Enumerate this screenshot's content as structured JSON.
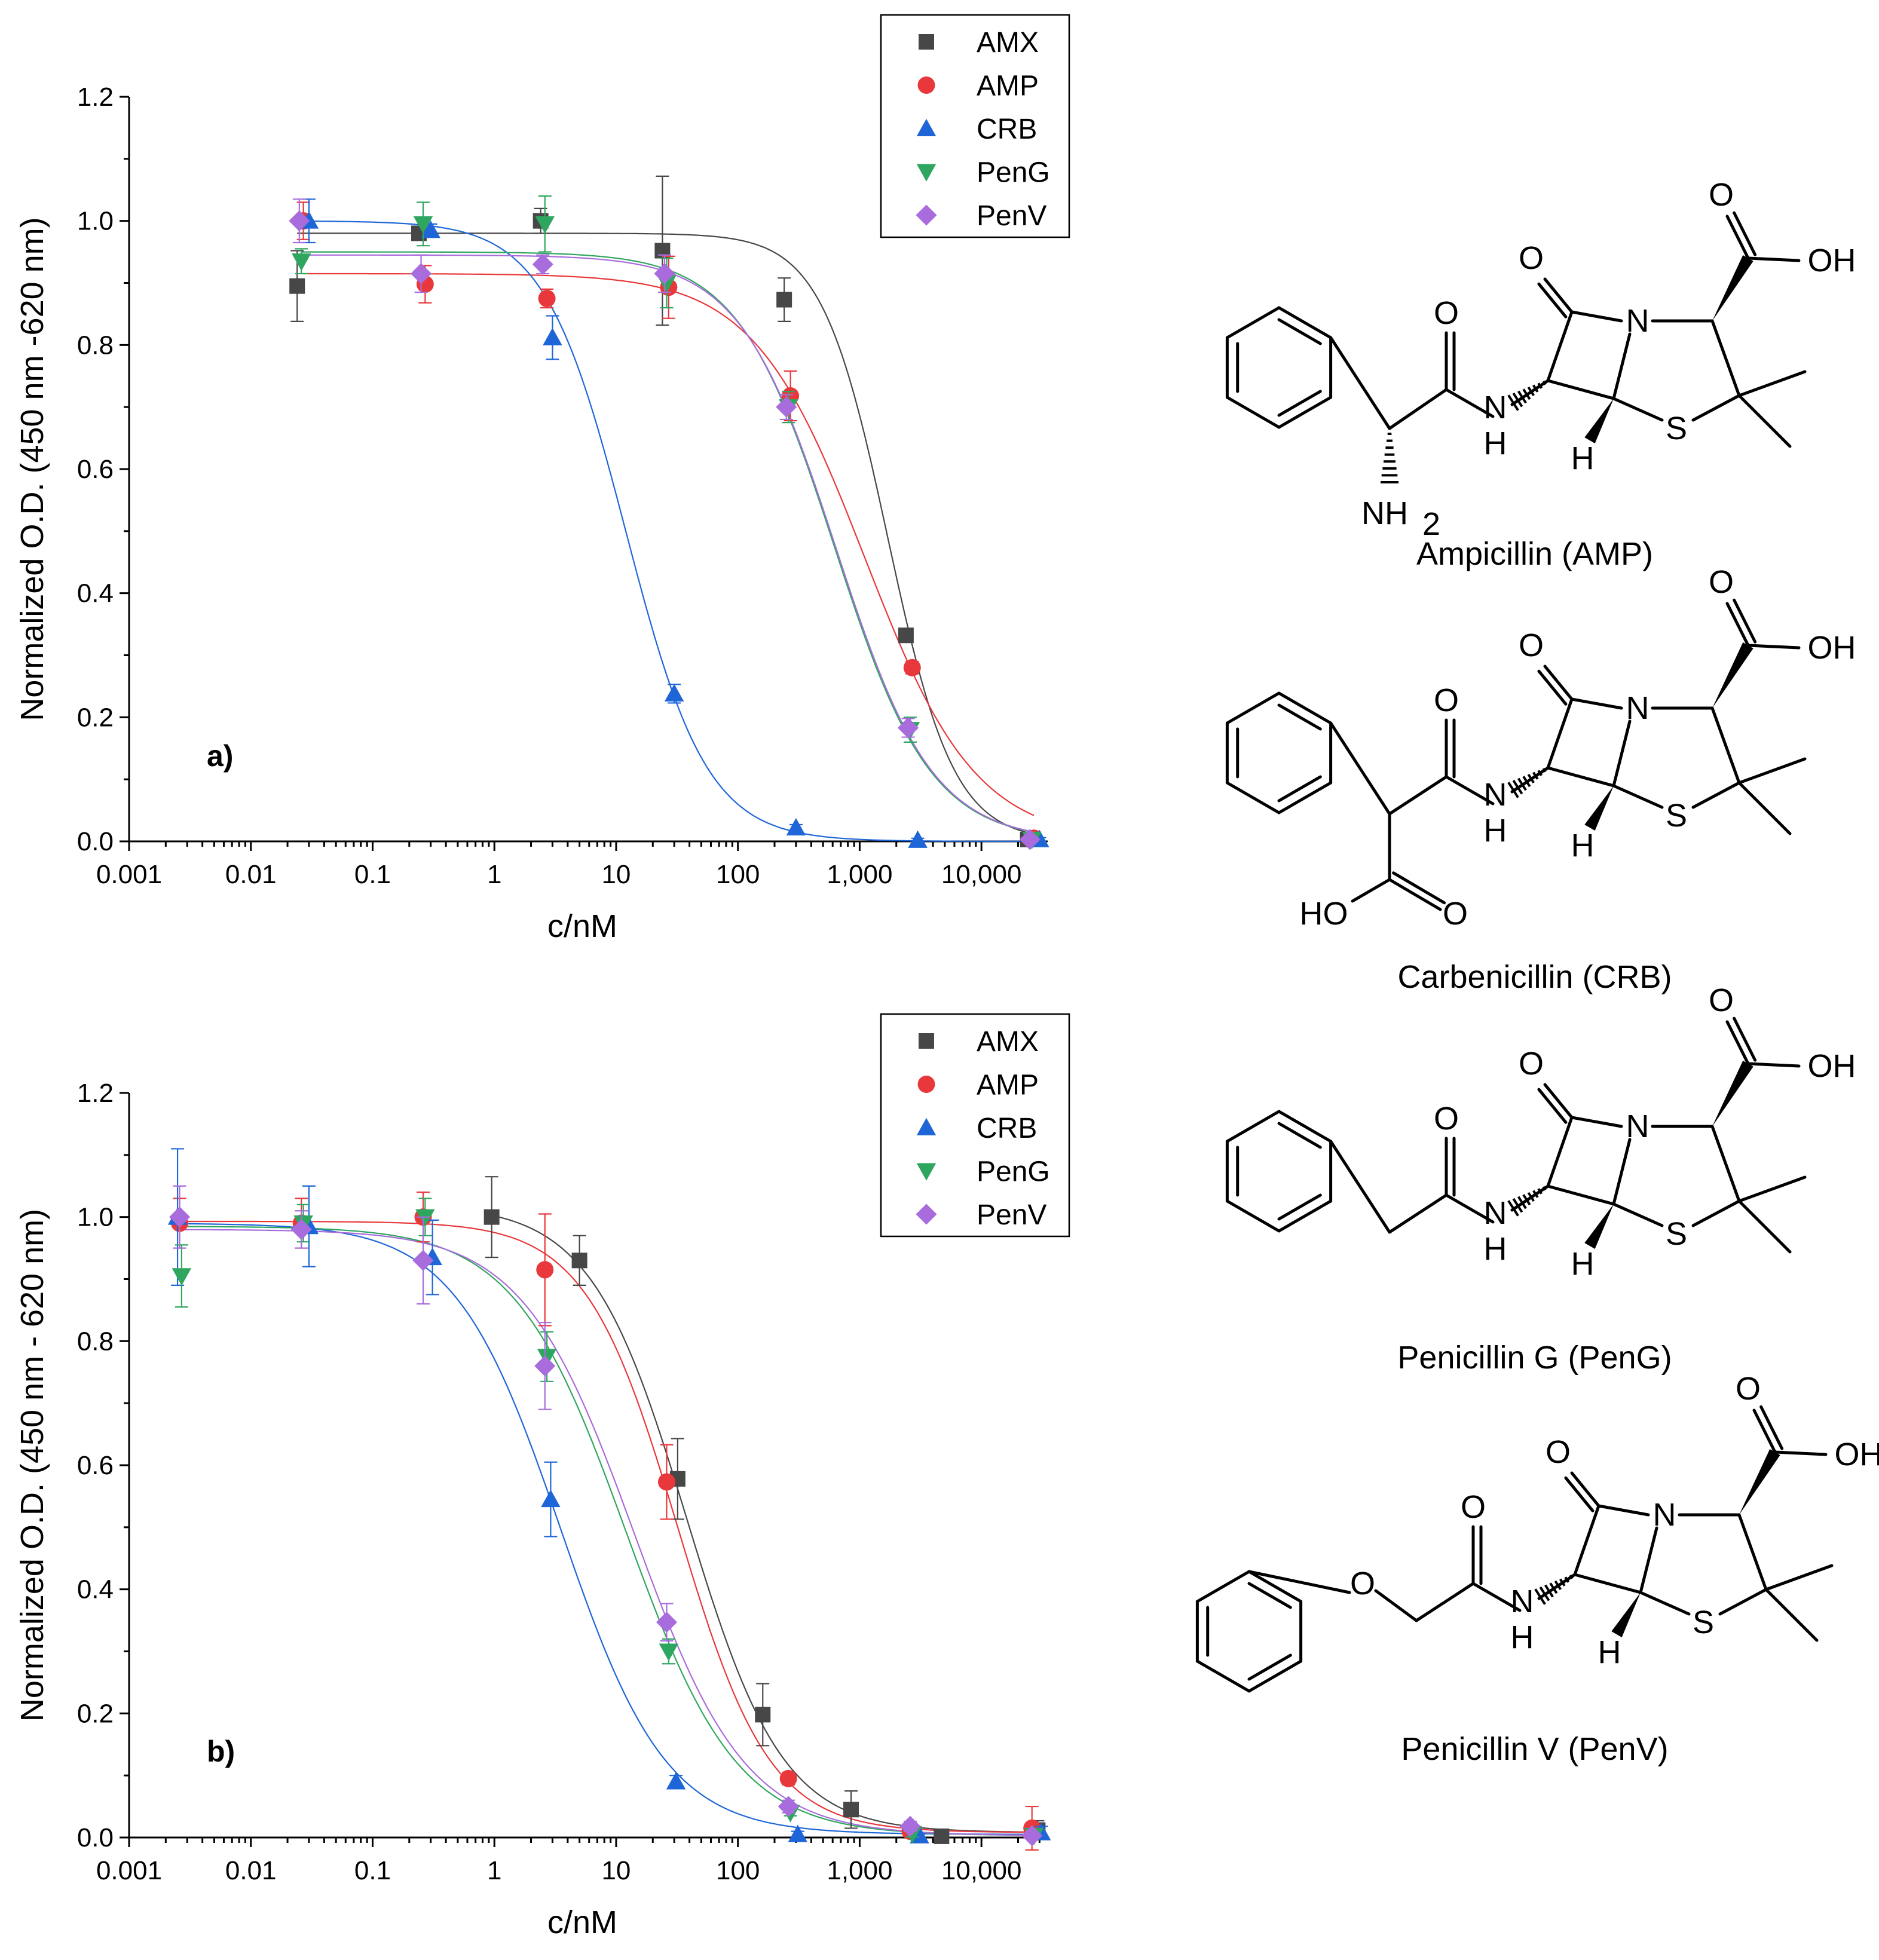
{
  "colors": {
    "AMX": "#474747",
    "AMP": "#e8383b",
    "CRB": "#1e66d8",
    "PenG": "#2fa660",
    "PenV": "#a86cdc"
  },
  "chart_data": [
    {
      "id": "a",
      "type": "scatter",
      "panel_label": "a)",
      "xlabel": "c/nM",
      "ylabel": "Normalized O.D. (450 nm -620 nm)",
      "xscale": "log",
      "xlim": [
        0.001,
        35000
      ],
      "ylim": [
        0,
        1.2
      ],
      "xticks": [
        "0.001",
        "0.01",
        "0.1",
        "1",
        "10",
        "100",
        "1,000",
        "10,000"
      ],
      "yticks": [
        "0.0",
        "0.2",
        "0.4",
        "0.6",
        "0.8",
        "1.0",
        "1.2"
      ],
      "legend_position": "top-right",
      "series": [
        {
          "name": "AMX",
          "marker": "square",
          "x": [
            0.024,
            0.24,
            2.4,
            24,
            240,
            2400,
            24000
          ],
          "y": [
            0.895,
            0.98,
            1.0,
            0.952,
            0.873,
            0.332,
            0.003
          ],
          "err": [
            0.057,
            0.01,
            0.02,
            0.12,
            0.035,
            0.01,
            0.005
          ],
          "fit": {
            "top": 0.98,
            "bottom": 0.0,
            "ic50": 1700,
            "hill": 1.6
          }
        },
        {
          "name": "AMP",
          "marker": "circle",
          "x": [
            0.027,
            0.27,
            2.7,
            27,
            270,
            2700,
            27000
          ],
          "y": [
            1.0,
            0.898,
            0.875,
            0.893,
            0.718,
            0.28,
            0.005
          ],
          "err": [
            0.03,
            0.03,
            0.015,
            0.05,
            0.04,
            0.01,
            0.005
          ],
          "fit": {
            "top": 0.915,
            "bottom": 0.0,
            "ic50": 1100,
            "hill": 0.95
          }
        },
        {
          "name": "CRB",
          "marker": "triangle-up",
          "x": [
            0.03,
            0.3,
            3,
            30,
            300,
            3000,
            30000
          ],
          "y": [
            1.0,
            0.985,
            0.812,
            0.238,
            0.022,
            0.002,
            0.003
          ],
          "err": [
            0.035,
            0.01,
            0.035,
            0.015,
            0.005,
            0.003,
            0.003
          ],
          "fit": {
            "top": 1.0,
            "bottom": 0.0,
            "ic50": 12,
            "hill": 1.3
          }
        },
        {
          "name": "PenG",
          "marker": "triangle-down",
          "x": [
            0.026,
            0.26,
            2.6,
            26,
            260,
            2600,
            26000
          ],
          "y": [
            0.935,
            0.995,
            0.995,
            0.9,
            0.7,
            0.18,
            0.003
          ],
          "err": [
            0.02,
            0.035,
            0.045,
            0.04,
            0.025,
            0.02,
            0.003
          ],
          "fit": {
            "top": 0.95,
            "bottom": 0.0,
            "ic50": 620,
            "hill": 1.1
          }
        },
        {
          "name": "PenV",
          "marker": "diamond",
          "x": [
            0.025,
            0.25,
            2.5,
            25,
            250,
            2500,
            25000
          ],
          "y": [
            1.0,
            0.915,
            0.93,
            0.915,
            0.7,
            0.183,
            0.003
          ],
          "err": [
            0.035,
            0.03,
            0.015,
            0.03,
            0.02,
            0.015,
            0.003
          ],
          "fit": {
            "top": 0.945,
            "bottom": 0.0,
            "ic50": 640,
            "hill": 1.1
          }
        }
      ]
    },
    {
      "id": "b",
      "type": "scatter",
      "panel_label": "b)",
      "xlabel": "c/nM",
      "ylabel": "Normalized O.D. (450 nm - 620 nm)",
      "xscale": "log",
      "xlim": [
        0.001,
        35000
      ],
      "ylim": [
        0,
        1.2
      ],
      "xticks": [
        "0.001",
        "0.01",
        "0.1",
        "1",
        "10",
        "100",
        "1,000",
        "10,000"
      ],
      "yticks": [
        "0.0",
        "0.2",
        "0.4",
        "0.6",
        "0.8",
        "1.0",
        "1.2"
      ],
      "legend_position": "top-right",
      "series": [
        {
          "name": "AMX",
          "marker": "square",
          "x": [
            0.95,
            5,
            32,
            160,
            850,
            4700,
            29000
          ],
          "y": [
            1.0,
            0.93,
            0.578,
            0.198,
            0.045,
            0.002,
            0.012
          ],
          "err": [
            0.065,
            0.04,
            0.065,
            0.05,
            0.03,
            0.005,
            0.015
          ],
          "fit": {
            "top": 1.02,
            "bottom": 0.008,
            "ic50": 38,
            "hill": 1.1
          }
        },
        {
          "name": "AMP",
          "marker": "circle",
          "x": [
            0.0026,
            0.026,
            0.26,
            2.6,
            26,
            260,
            2600,
            26000
          ],
          "y": [
            0.99,
            0.99,
            1.0,
            0.915,
            0.573,
            0.095,
            0.01,
            0.015
          ],
          "err": [
            0.04,
            0.04,
            0.04,
            0.09,
            0.06,
            0.01,
            0.005,
            0.035
          ],
          "fit": {
            "top": 0.993,
            "bottom": 0.008,
            "ic50": 32,
            "hill": 1.15
          }
        },
        {
          "name": "CRB",
          "marker": "triangle-up",
          "x": [
            0.0025,
            0.03,
            0.31,
            2.9,
            31,
            310,
            3100,
            31000
          ],
          "y": [
            1.0,
            0.985,
            0.935,
            0.545,
            0.09,
            0.005,
            0.003,
            0.008
          ],
          "err": [
            0.11,
            0.065,
            0.06,
            0.06,
            0.01,
            0.005,
            0.003,
            0.01
          ],
          "fit": {
            "top": 0.99,
            "bottom": 0.005,
            "ic50": 3.5,
            "hill": 1.0
          }
        },
        {
          "name": "PenG",
          "marker": "triangle-down",
          "x": [
            0.0027,
            0.027,
            0.27,
            2.7,
            27,
            270,
            2700,
            27000
          ],
          "y": [
            0.905,
            0.99,
            1.0,
            0.775,
            0.3,
            0.04,
            0.006,
            0.003
          ],
          "err": [
            0.05,
            0.03,
            0.03,
            0.04,
            0.02,
            0.005,
            0.005,
            0.003
          ],
          "fit": {
            "top": 0.985,
            "bottom": 0.003,
            "ic50": 12,
            "hill": 0.95
          }
        },
        {
          "name": "PenV",
          "marker": "diamond",
          "x": [
            0.0026,
            0.026,
            0.26,
            2.6,
            26,
            260,
            2600,
            26000
          ],
          "y": [
            1.0,
            0.98,
            0.93,
            0.76,
            0.347,
            0.05,
            0.018,
            0.003
          ],
          "err": [
            0.05,
            0.03,
            0.07,
            0.07,
            0.03,
            0.01,
            0.008,
            0.003
          ],
          "fit": {
            "top": 0.98,
            "bottom": 0.003,
            "ic50": 14,
            "hill": 0.95
          }
        }
      ]
    }
  ],
  "structures": [
    {
      "id": "ampicillin",
      "name": "Ampicillin (AMP)"
    },
    {
      "id": "carbenicillin",
      "name": "Carbenicillin (CRB)"
    },
    {
      "id": "penicillin-g",
      "name": "Penicillin G (PenG)"
    },
    {
      "id": "penicillin-v",
      "name": "Penicillin V (PenV)"
    }
  ],
  "atoms": {
    "O": "O",
    "OH": "OH",
    "HO": "HO",
    "N": "N",
    "H": "H",
    "S": "S",
    "NH": "NH",
    "sub2": "2"
  }
}
